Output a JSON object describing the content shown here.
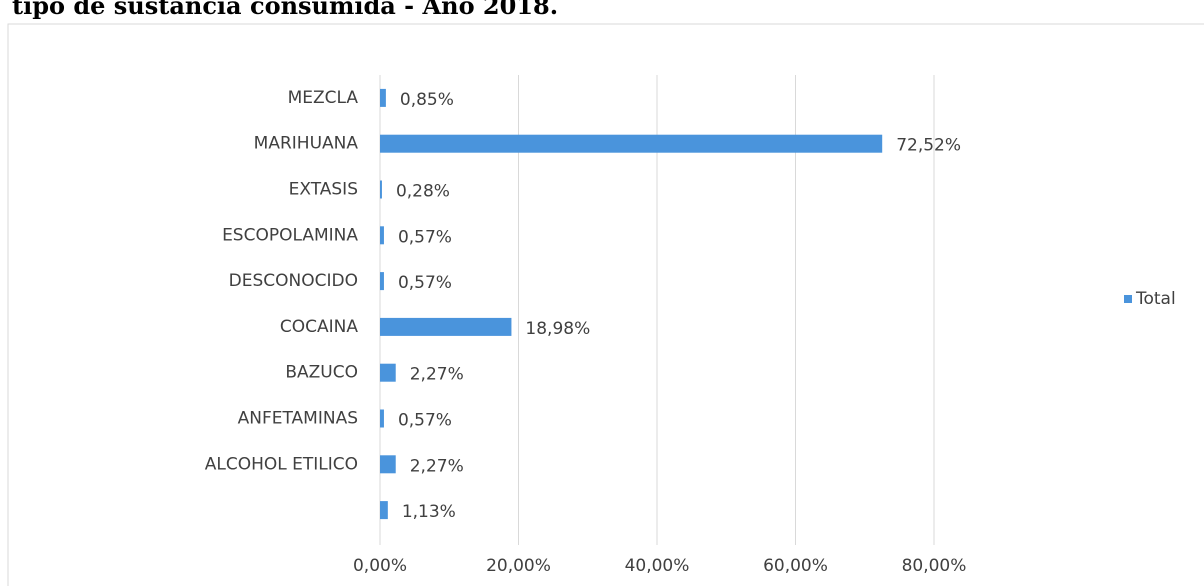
{
  "chart_data": {
    "type": "hbar",
    "title": "tipo de sustancia consumida - Año 2018.",
    "categories": [
      "MEZCLA",
      "MARIHUANA",
      "EXTASIS",
      "ESCOPOLAMINA",
      "DESCONOCIDO",
      "COCAINA",
      "BAZUCO",
      "ANFETAMINAS",
      "ALCOHOL ETILICO",
      null
    ],
    "series": [
      {
        "name": "Total",
        "color": "#4a94dc",
        "values": [
          0.85,
          72.52,
          0.28,
          0.57,
          0.57,
          18.98,
          2.27,
          0.57,
          2.27,
          1.13
        ],
        "value_labels": [
          "0,85%",
          "72,52%",
          "0,28%",
          "0,57%",
          "0,57%",
          "18,98%",
          "2,27%",
          "0,57%",
          "2,27%",
          "1,13%"
        ]
      }
    ],
    "xlim": [
      0,
      80
    ],
    "xticks": [
      {
        "value": 0,
        "label": "0,00%"
      },
      {
        "value": 20,
        "label": "20,00%"
      },
      {
        "value": 40,
        "label": "40,00%"
      },
      {
        "value": 60,
        "label": "60,00%"
      },
      {
        "value": 80,
        "label": "80,00%"
      }
    ],
    "grid": true,
    "legend": "right"
  }
}
